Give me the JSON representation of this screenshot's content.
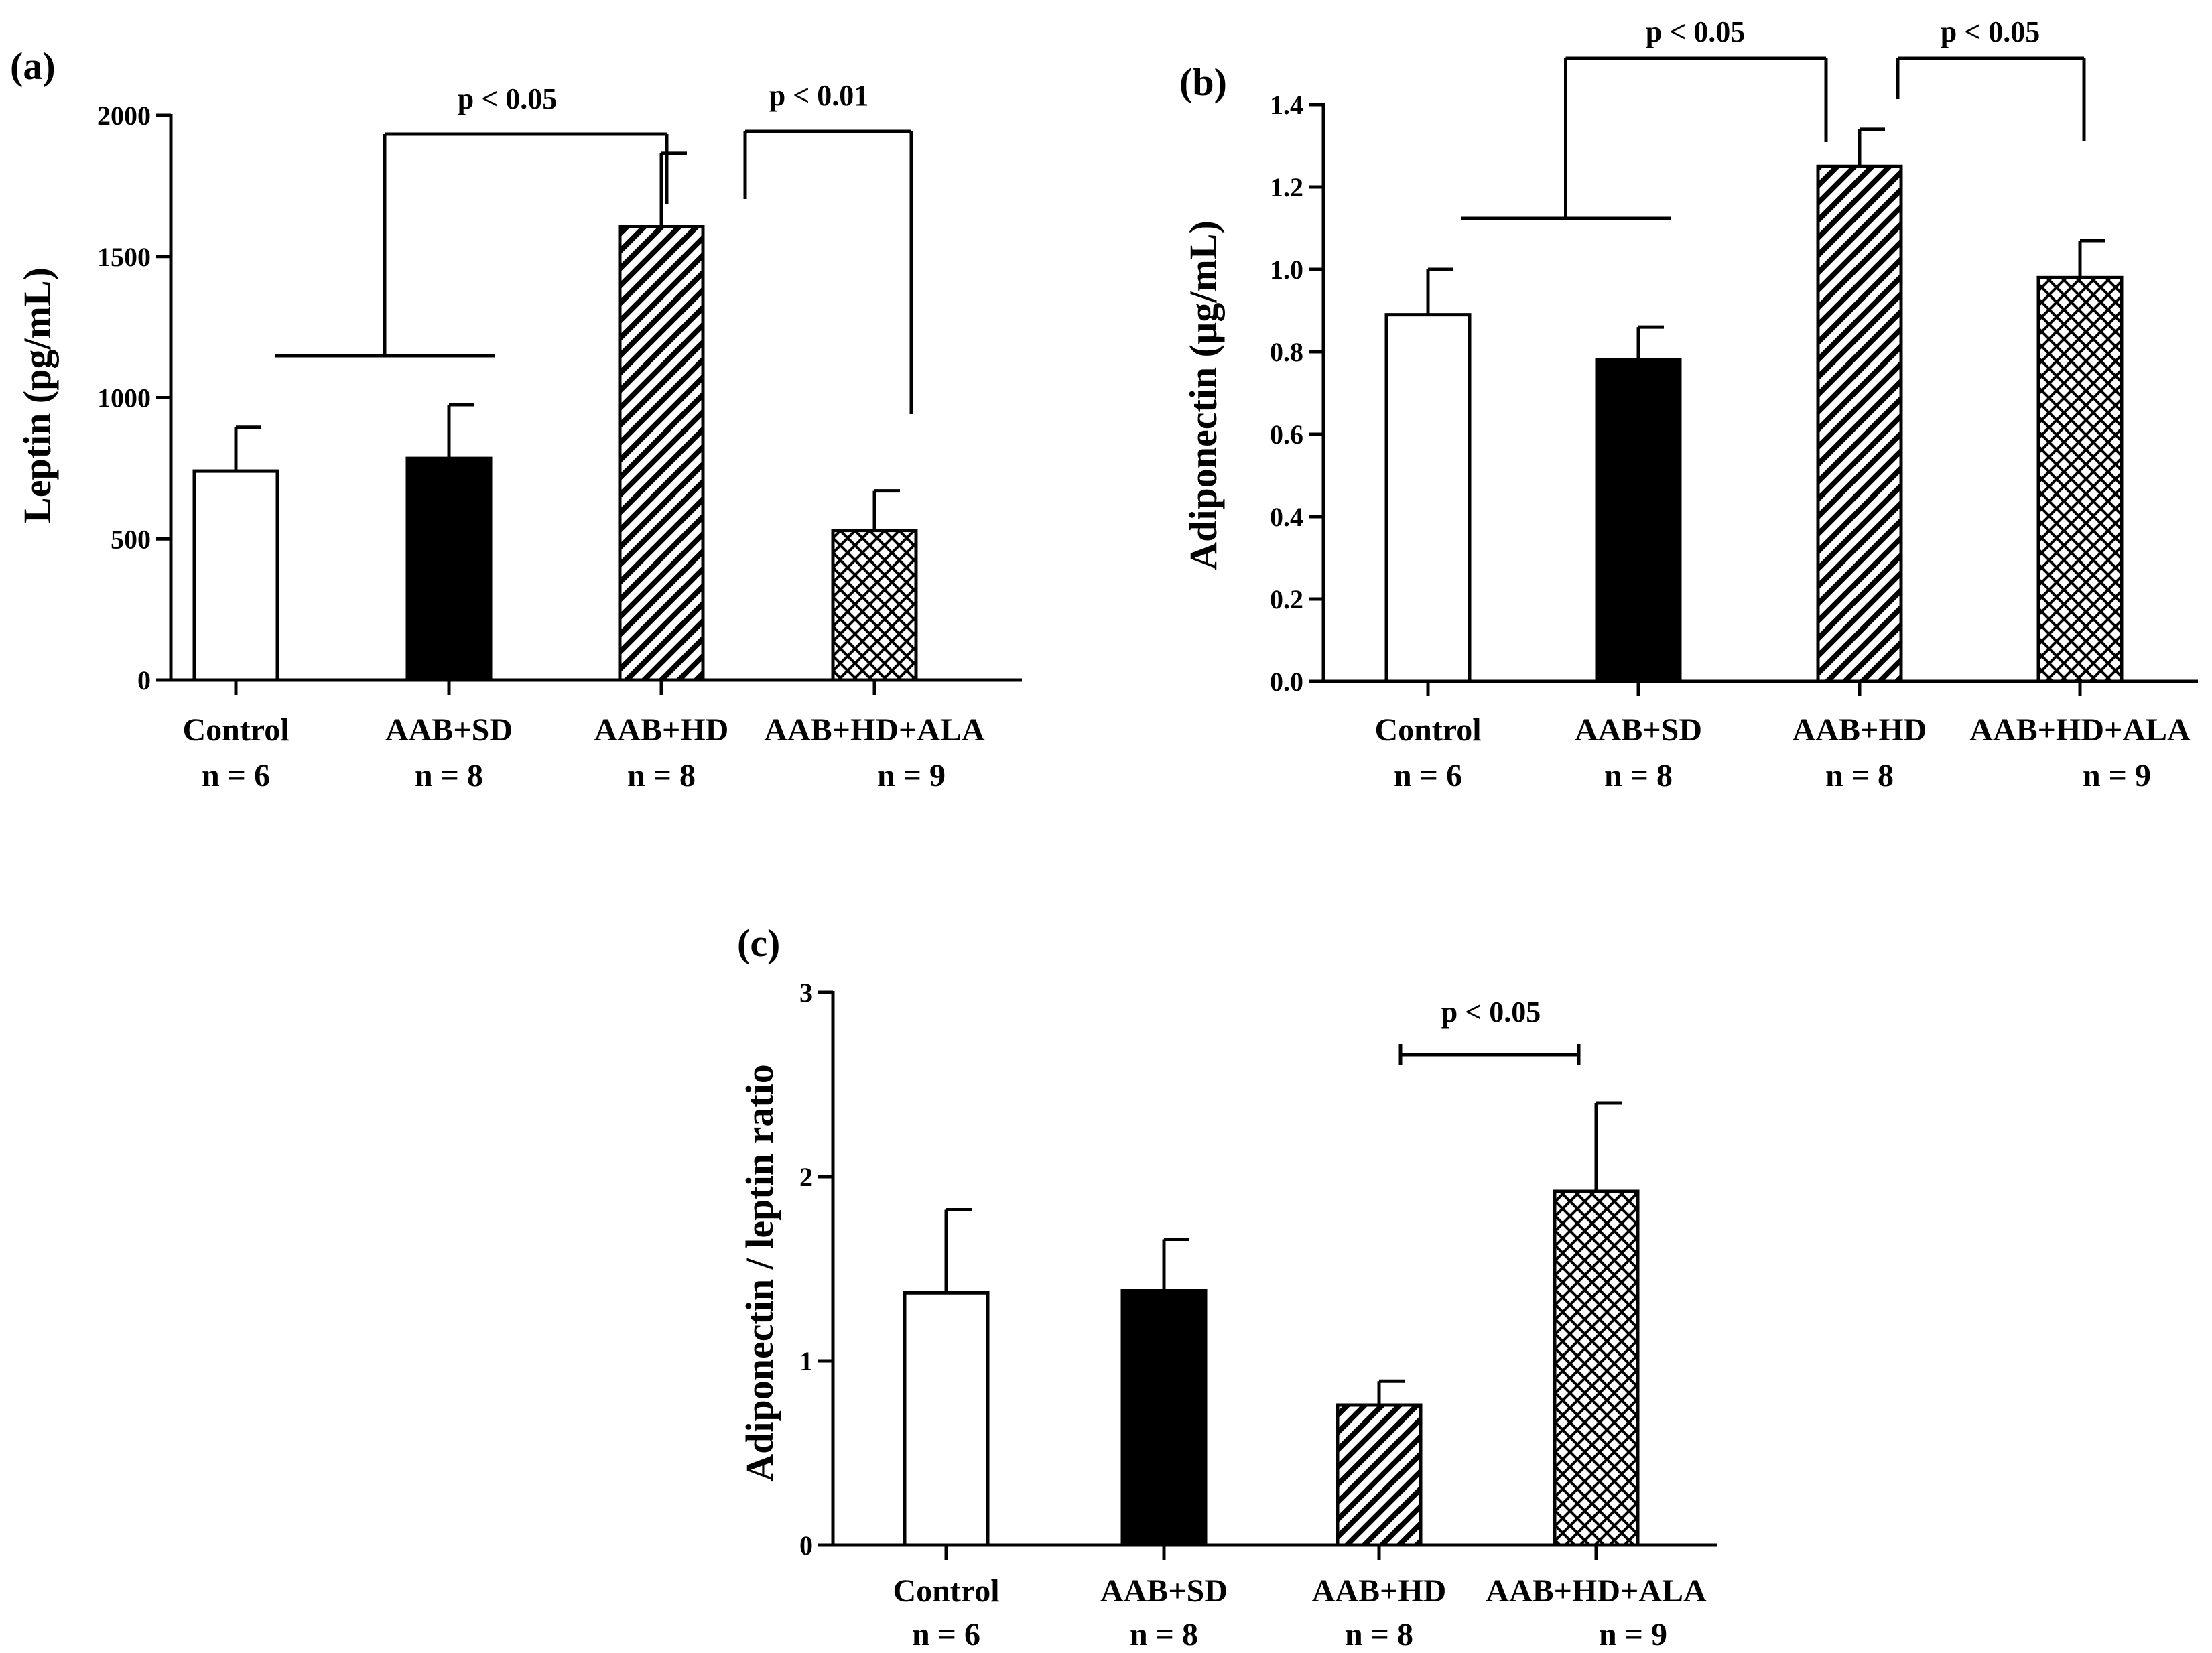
{
  "figure": {
    "background": "#ffffff",
    "ink": "#000000"
  },
  "chart_data": [
    {
      "type": "bar",
      "panel_label": "(a)",
      "ylabel": "Leptin (pg/mL)",
      "ylim": [
        0,
        2000
      ],
      "yticks": [
        0,
        500,
        1000,
        1500,
        2000
      ],
      "ytick_labels": [
        "0",
        "500",
        "1000",
        "1500",
        "2000"
      ],
      "categories": [
        "Control",
        "AAB+SD",
        "AAB+HD",
        "AAB+HD+ALA"
      ],
      "sample_sizes": [
        "n = 6",
        "n = 8",
        "n = 8",
        "n = 9"
      ],
      "values": [
        740,
        785,
        1605,
        530
      ],
      "errors": [
        155,
        190,
        260,
        140
      ],
      "fills": [
        "white",
        "black",
        "diagonal",
        "crosshatch"
      ],
      "annotations": [
        {
          "text": "p < 0.05",
          "type": "group-vs-bar",
          "group": [
            0,
            1
          ],
          "bar": 2
        },
        {
          "text": "p < 0.01",
          "type": "bar-vs-bar",
          "bars": [
            2,
            3
          ]
        }
      ]
    },
    {
      "type": "bar",
      "panel_label": "(b)",
      "ylabel": "Adiponectin (µg/mL)",
      "ylim": [
        0,
        1.4
      ],
      "yticks": [
        0,
        0.2,
        0.4,
        0.6,
        0.8,
        1.0,
        1.2,
        1.4
      ],
      "ytick_labels": [
        "0.0",
        "0.2",
        "0.4",
        "0.6",
        "0.8",
        "1.0",
        "1.2",
        "1.4"
      ],
      "categories": [
        "Control",
        "AAB+SD",
        "AAB+HD",
        "AAB+HD+ALA"
      ],
      "sample_sizes": [
        "n = 6",
        "n = 8",
        "n = 8",
        "n = 9"
      ],
      "values": [
        0.89,
        0.78,
        1.25,
        0.98
      ],
      "errors": [
        0.11,
        0.08,
        0.09,
        0.09
      ],
      "fills": [
        "white",
        "black",
        "diagonal",
        "crosshatch"
      ],
      "annotations": [
        {
          "text": "p < 0.05",
          "type": "group-vs-bar",
          "group": [
            0,
            1
          ],
          "bar": 2
        },
        {
          "text": "p < 0.05",
          "type": "bar-vs-bar",
          "bars": [
            2,
            3
          ]
        }
      ]
    },
    {
      "type": "bar",
      "panel_label": "(c)",
      "ylabel": "Adiponectin / leptin ratio",
      "ylim": [
        0,
        3
      ],
      "yticks": [
        0,
        1,
        2,
        3
      ],
      "ytick_labels": [
        "0",
        "1",
        "2",
        "3"
      ],
      "categories": [
        "Control",
        "AAB+SD",
        "AAB+HD",
        "AAB+HD+ALA"
      ],
      "sample_sizes": [
        "n = 6",
        "n = 8",
        "n = 8",
        "n = 9"
      ],
      "values": [
        1.37,
        1.38,
        0.76,
        1.92
      ],
      "errors": [
        0.45,
        0.28,
        0.13,
        0.48
      ],
      "fills": [
        "white",
        "black",
        "diagonal",
        "crosshatch"
      ],
      "annotations": [
        {
          "text": "p < 0.05",
          "type": "bracket",
          "bars": [
            2,
            3
          ]
        }
      ]
    }
  ]
}
